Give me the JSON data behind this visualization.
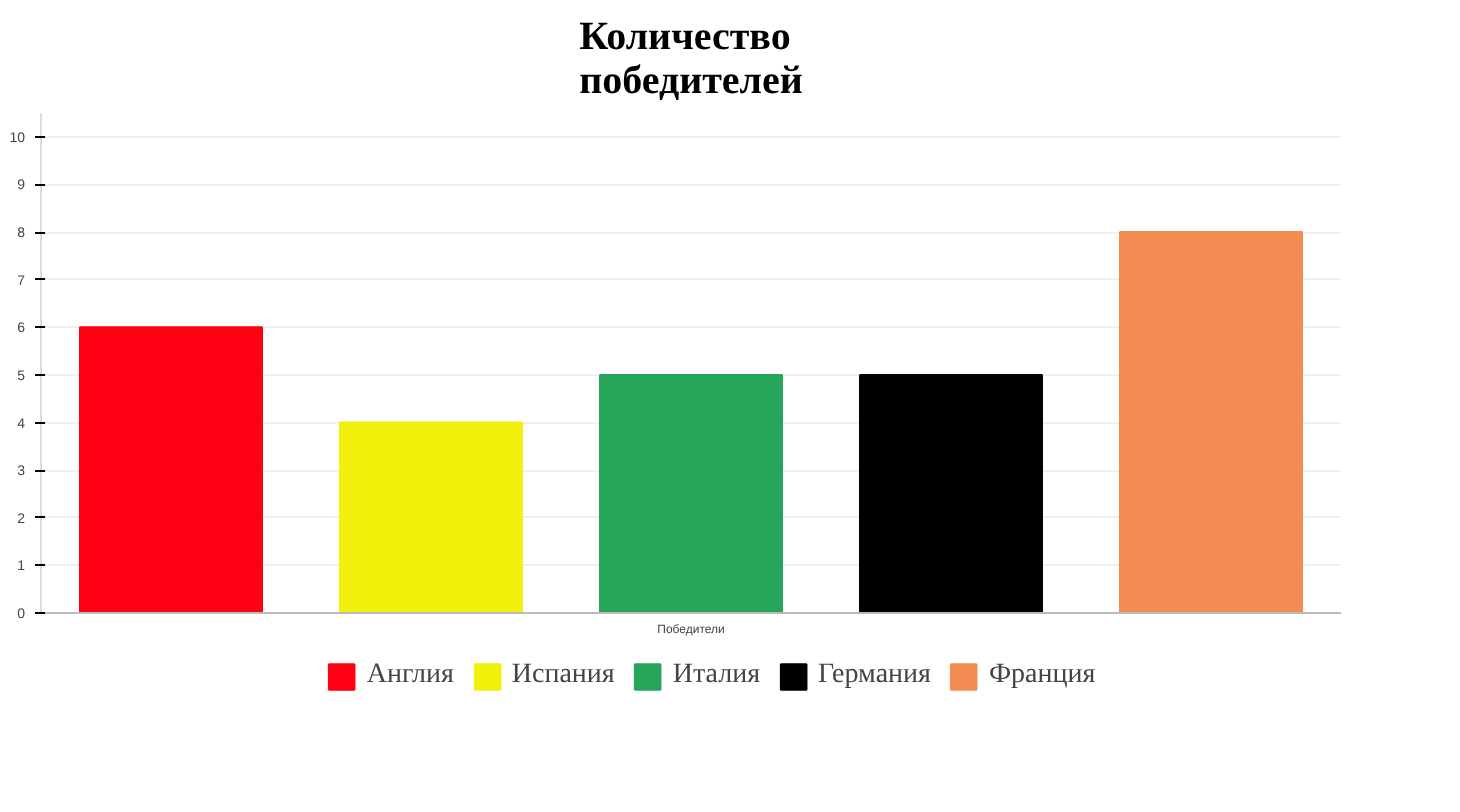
{
  "chart_data": {
    "type": "bar",
    "title": "Количество\nпобедителей",
    "xlabel": "Победители",
    "categories": [
      null,
      null,
      null,
      null,
      null
    ],
    "series": [
      {
        "name": "Англия",
        "color": "#ff0013",
        "values": [
          6,
          null,
          null,
          null,
          null
        ]
      },
      {
        "name": "Испания",
        "color": "#f0f00a",
        "values": [
          null,
          4,
          null,
          null,
          null
        ]
      },
      {
        "name": "Италия",
        "color": "#27a55b",
        "values": [
          null,
          null,
          5,
          null,
          null
        ]
      },
      {
        "name": "Германия",
        "color": "#000000",
        "values": [
          null,
          null,
          null,
          5,
          null
        ]
      },
      {
        "name": "Франция",
        "color": "#f28c52",
        "values": [
          null,
          null,
          null,
          null,
          8
        ]
      }
    ],
    "ylim": [
      0,
      10.5
    ],
    "yticks": [
      0,
      1,
      2,
      3,
      4,
      5,
      6,
      7,
      8,
      9,
      10
    ],
    "grid": "y",
    "legend": "bottom"
  }
}
